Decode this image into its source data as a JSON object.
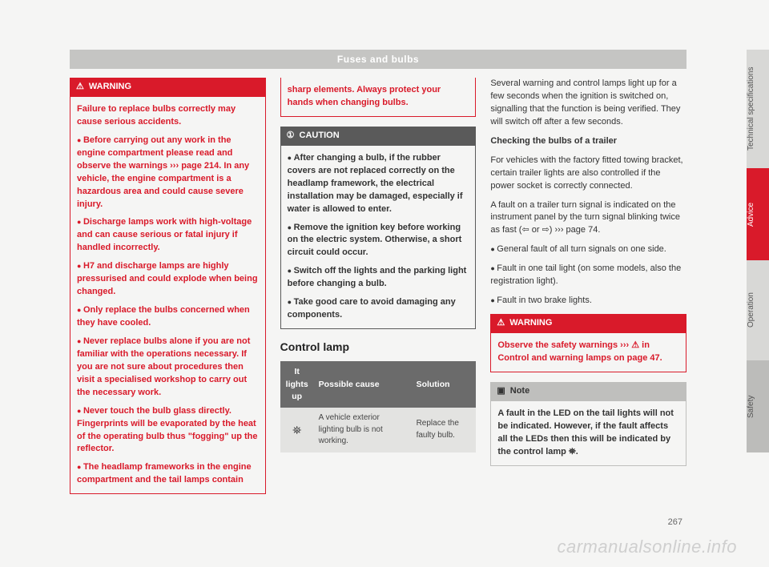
{
  "page": {
    "header": "Fuses and bulbs",
    "number": "267",
    "watermark": "carmanualsonline.info"
  },
  "col1": {
    "warning": {
      "head": "WARNING",
      "intro": "Failure to replace bulbs correctly may cause serious accidents.",
      "bullets": [
        "Before carrying out any work in the engine compartment please read and observe the warnings ››› page 214. In any vehicle, the engine compartment is a hazardous area and could cause severe injury.",
        "Discharge lamps work with high-voltage and can cause serious or fatal injury if handled incorrectly.",
        "H7 and discharge lamps are highly pressurised and could explode when being changed.",
        "Only replace the bulbs concerned when they have cooled.",
        "Never replace bulbs alone if you are not familiar with the operations necessary. If you are not sure about procedures then visit a specialised workshop to carry out the necessary work.",
        "Never touch the bulb glass directly. Fingerprints will be evaporated by the heat of the operating bulb thus \"fogging\" up the reflector.",
        "The headlamp frameworks in the engine compartment and the tail lamps contain"
      ]
    }
  },
  "col2": {
    "continuation": "sharp elements. Always protect your hands when changing bulbs.",
    "caution": {
      "head": "CAUTION",
      "bullets": [
        "After changing a bulb, if the rubber covers are not replaced correctly on the headlamp framework, the electrical installation may be damaged, especially if water is allowed to enter.",
        "Remove the ignition key before working on the electric system. Otherwise, a short circuit could occur.",
        "Switch off the lights and the parking light before changing a bulb.",
        "Take good care to avoid damaging any components."
      ]
    },
    "controlLamp": {
      "title": "Control lamp",
      "th1": "It lights up",
      "th2": "Possible cause",
      "th3": "Solution",
      "iconGlyph": "⛯",
      "cause": "A vehicle exterior lighting bulb is not working.",
      "solution": "Replace the faulty bulb."
    }
  },
  "col3": {
    "para1": "Several warning and control lamps light up for a few seconds when the ignition is switched on, signalling that the function is being verified. They will switch off after a few seconds.",
    "subhead": "Checking the bulbs of a trailer",
    "para2": "For vehicles with the factory fitted towing bracket, certain trailer lights are also controlled if the power socket is correctly connected.",
    "para3": "A fault on a trailer turn signal is indicated on the instrument panel by the turn signal blinking twice as fast (⇦ or ⇨) ››› page 74.",
    "list": [
      "General fault of all turn signals on one side.",
      "Fault in one tail light (on some models, also the registration light).",
      "Fault in two brake lights."
    ],
    "warning": {
      "head": "WARNING",
      "body": "Observe the safety warnings ››› ⚠ in Control and warning lamps on page 47."
    },
    "note": {
      "head": "Note",
      "body": "A fault in the LED on the tail lights will not be indicated. However, if the fault affects all the LEDs then this will be indicated by the control lamp ⛯."
    }
  },
  "tabs": {
    "t1": "Technical specifications",
    "t2": "Advice",
    "t3": "Operation",
    "t4": "Safety"
  },
  "icons": {
    "warningTriangle": "⚠",
    "cautionCircle": "①",
    "noteBox": "▣"
  }
}
